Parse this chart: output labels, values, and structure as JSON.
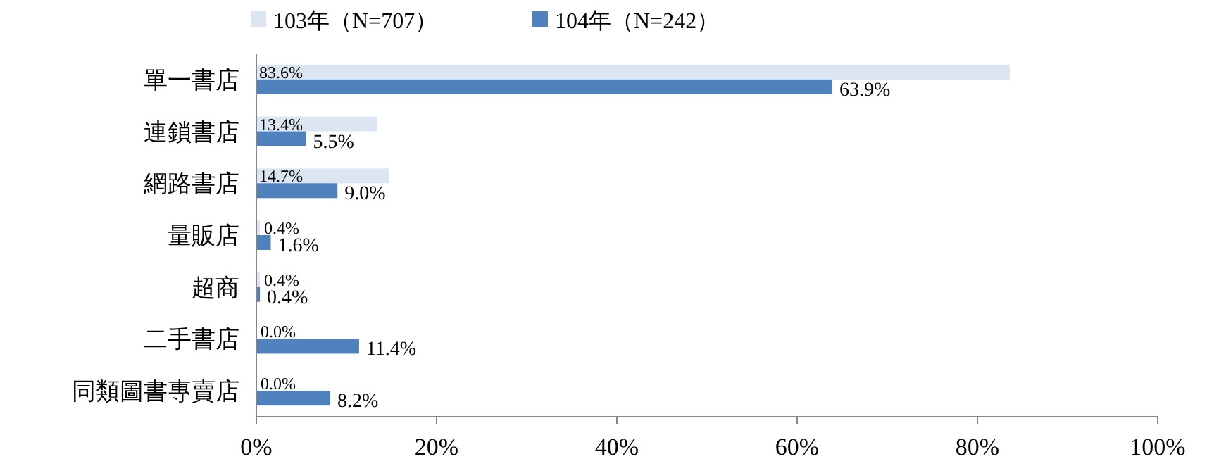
{
  "chart_data": {
    "type": "bar",
    "orientation": "horizontal",
    "categories": [
      "單一書店",
      "連鎖書店",
      "網路書店",
      "量販店",
      "超商",
      "二手書店",
      "同類圖書專賣店"
    ],
    "series": [
      {
        "name": "103年（N=707）",
        "color": "#dce6f2",
        "values": [
          83.6,
          13.4,
          14.7,
          0.4,
          0.4,
          0.0,
          0.0
        ],
        "value_labels": [
          "83.6%",
          "13.4%",
          "14.7%",
          "0.4%",
          "0.4%",
          "0.0%",
          "0.0%"
        ]
      },
      {
        "name": "104年（N=242）",
        "color": "#4f81bd",
        "values": [
          63.9,
          5.5,
          9.0,
          1.6,
          0.4,
          11.4,
          8.2
        ],
        "value_labels": [
          "63.9%",
          "5.5%",
          "9.0%",
          "1.6%",
          "0.4%",
          "11.4%",
          "8.2%"
        ]
      }
    ],
    "xlim": [
      0,
      100
    ],
    "xticks": [
      {
        "value": 0,
        "label": "0%"
      },
      {
        "value": 20,
        "label": "20%"
      },
      {
        "value": 40,
        "label": "40%"
      },
      {
        "value": 60,
        "label": "60%"
      },
      {
        "value": 80,
        "label": "80%"
      },
      {
        "value": 100,
        "label": "100%"
      }
    ],
    "legend": "top left",
    "grid": false
  }
}
